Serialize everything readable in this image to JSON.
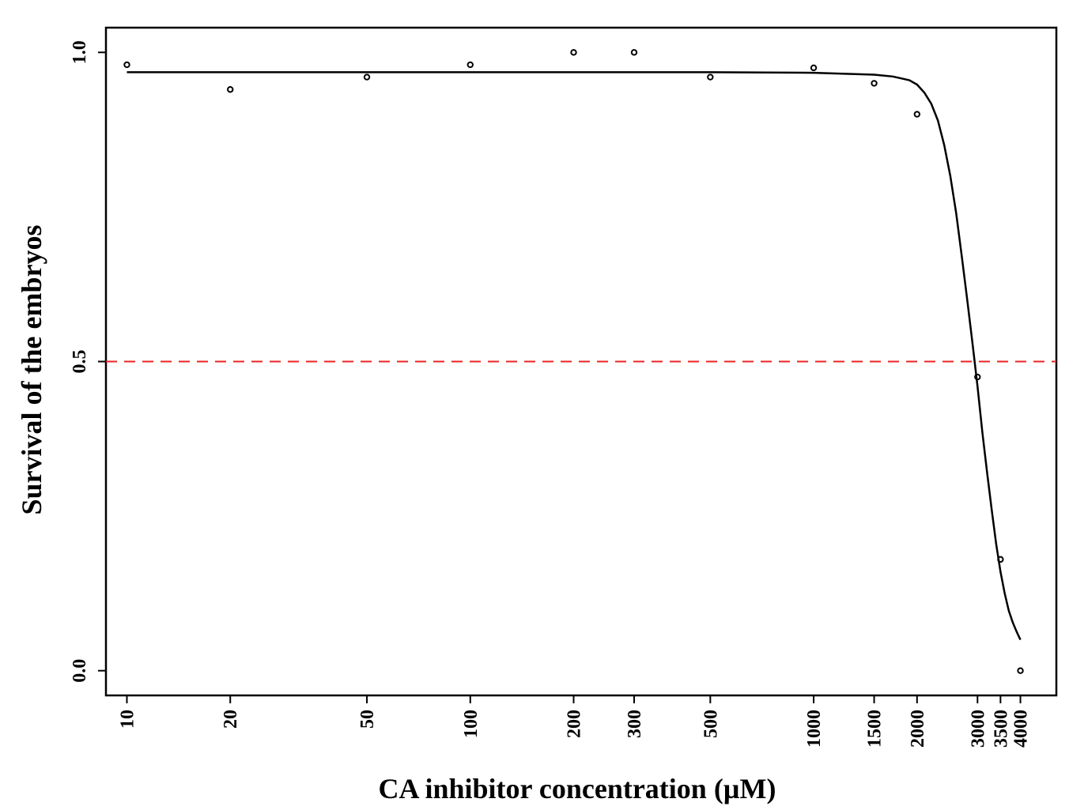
{
  "chart_data": {
    "type": "scatter",
    "xlabel": "CA inhibitor concentration (µM)",
    "ylabel": "Survival of the embryos",
    "x_scale": "log",
    "xlim": [
      8.69,
      5090
    ],
    "ylim": [
      -0.04,
      1.04
    ],
    "x_ticks": [
      10,
      20,
      50,
      100,
      200,
      300,
      500,
      1000,
      1500,
      2000,
      3000,
      3500,
      4000
    ],
    "x_tick_labels": [
      "10",
      "20",
      "50",
      "100",
      "200",
      "300",
      "500",
      "1000",
      "1500",
      "2000",
      "3000",
      "3500",
      "4000"
    ],
    "y_ticks": [
      0.0,
      0.5,
      1.0
    ],
    "y_tick_labels": [
      "0.0",
      "0.5",
      "1.0"
    ],
    "points": {
      "x": [
        10,
        20,
        50,
        100,
        200,
        300,
        500,
        1000,
        1500,
        2000,
        3000,
        3500,
        4000
      ],
      "y": [
        0.98,
        0.94,
        0.96,
        0.98,
        1.0,
        1.0,
        0.96,
        0.975,
        0.95,
        0.9,
        0.475,
        0.18,
        0.0
      ]
    },
    "fit_curve": {
      "x": [
        10,
        50,
        100,
        500,
        1000,
        1500,
        1700,
        1900,
        2000,
        2100,
        2200,
        2300,
        2400,
        2500,
        2600,
        2700,
        2800,
        2900,
        3000,
        3100,
        3200,
        3300,
        3400,
        3500,
        3600,
        3700,
        3800,
        3900,
        4000
      ],
      "y": [
        0.968,
        0.968,
        0.968,
        0.968,
        0.967,
        0.964,
        0.961,
        0.955,
        0.948,
        0.935,
        0.917,
        0.89,
        0.85,
        0.8,
        0.74,
        0.67,
        0.6,
        0.53,
        0.46,
        0.385,
        0.32,
        0.26,
        0.205,
        0.16,
        0.125,
        0.097,
        0.078,
        0.063,
        0.05
      ]
    },
    "reference_line": {
      "y": 0.5,
      "style": "dashed",
      "color": "#ee2222"
    },
    "colors": {
      "points": "#000000",
      "curve": "#000000",
      "axes": "#000000"
    },
    "grid": false,
    "legend": "none"
  }
}
